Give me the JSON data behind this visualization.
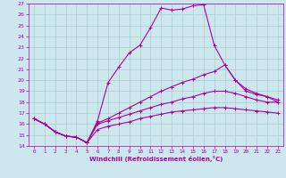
{
  "xlabel": "Windchill (Refroidissement éolien,°C)",
  "xlim": [
    -0.5,
    23.5
  ],
  "ylim": [
    14,
    27
  ],
  "xticks": [
    0,
    1,
    2,
    3,
    4,
    5,
    6,
    7,
    8,
    9,
    10,
    11,
    12,
    13,
    14,
    15,
    16,
    17,
    18,
    19,
    20,
    21,
    22,
    23
  ],
  "yticks": [
    14,
    15,
    16,
    17,
    18,
    19,
    20,
    21,
    22,
    23,
    24,
    25,
    26,
    27
  ],
  "background_color": "#cce8ee",
  "line_color": "#aa00aa",
  "grid_color": "#aacccc",
  "lines": [
    {
      "x": [
        0,
        1,
        2,
        3,
        4,
        5,
        6,
        7,
        8,
        9,
        10,
        11,
        12,
        13,
        14,
        15,
        16,
        17,
        18,
        19,
        20,
        21,
        22,
        23
      ],
      "y": [
        16.5,
        16.0,
        15.3,
        14.9,
        14.8,
        14.3,
        16.3,
        19.8,
        21.2,
        22.5,
        23.2,
        24.8,
        26.6,
        26.4,
        26.5,
        26.8,
        26.9,
        23.2,
        21.4,
        20.0,
        19.0,
        18.7,
        18.5,
        18.0
      ]
    },
    {
      "x": [
        0,
        1,
        2,
        3,
        4,
        5,
        6,
        7,
        8,
        9,
        10,
        11,
        12,
        13,
        14,
        15,
        16,
        17,
        18,
        19,
        20,
        21,
        22,
        23
      ],
      "y": [
        16.5,
        16.0,
        15.3,
        14.9,
        14.8,
        14.3,
        16.1,
        16.5,
        17.0,
        17.5,
        18.0,
        18.5,
        19.0,
        19.4,
        19.8,
        20.1,
        20.5,
        20.8,
        21.4,
        20.0,
        19.2,
        18.8,
        18.5,
        18.2
      ]
    },
    {
      "x": [
        0,
        1,
        2,
        3,
        4,
        5,
        6,
        7,
        8,
        9,
        10,
        11,
        12,
        13,
        14,
        15,
        16,
        17,
        18,
        19,
        20,
        21,
        22,
        23
      ],
      "y": [
        16.5,
        16.0,
        15.3,
        14.9,
        14.8,
        14.3,
        16.0,
        16.3,
        16.6,
        16.9,
        17.2,
        17.5,
        17.8,
        18.0,
        18.3,
        18.5,
        18.8,
        19.0,
        19.0,
        18.8,
        18.5,
        18.2,
        18.0,
        18.0
      ]
    },
    {
      "x": [
        0,
        1,
        2,
        3,
        4,
        5,
        6,
        7,
        8,
        9,
        10,
        11,
        12,
        13,
        14,
        15,
        16,
        17,
        18,
        19,
        20,
        21,
        22,
        23
      ],
      "y": [
        16.5,
        16.0,
        15.3,
        14.9,
        14.8,
        14.3,
        15.5,
        15.8,
        16.0,
        16.2,
        16.5,
        16.7,
        16.9,
        17.1,
        17.2,
        17.3,
        17.4,
        17.5,
        17.5,
        17.4,
        17.3,
        17.2,
        17.1,
        17.0
      ]
    }
  ]
}
